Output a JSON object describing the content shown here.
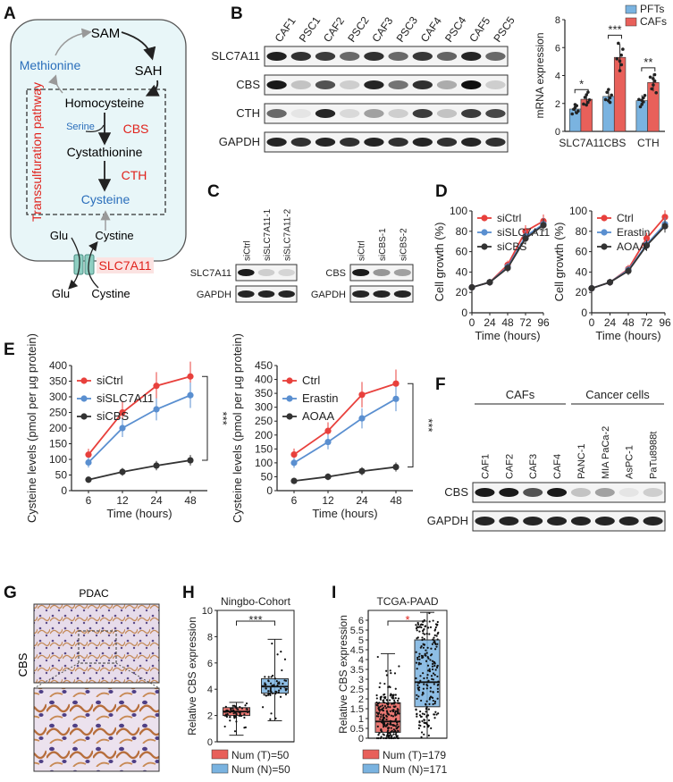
{
  "panel_letters": [
    "A",
    "B",
    "C",
    "D",
    "E",
    "F",
    "G",
    "H",
    "I"
  ],
  "panel_a": {
    "sam": "SAM",
    "sah": "SAH",
    "methionine": "Methionine",
    "homocysteine": "Homocysteine",
    "serine": "Serine",
    "cbs": "CBS",
    "cystathionine": "Cystathionine",
    "cth": "CTH",
    "cysteine": "Cysteine",
    "pathway": "Transsulfuration pathway",
    "glu_in": "Glu",
    "cystine_in": "Cystine",
    "glu_out": "Glu",
    "cystine_out": "Cystine",
    "transporter": "SLC7A11",
    "colors": {
      "blue": "#2a6ebb",
      "red": "#e0221c",
      "cell_fill": "#e8f6f8",
      "transporter": "#8fcfc2"
    }
  },
  "panel_b_blot": {
    "lanes": [
      "CAF1",
      "PSC1",
      "CAF2",
      "PSC2",
      "CAF3",
      "PSC3",
      "CAF4",
      "PSC4",
      "CAF5",
      "PSC5"
    ],
    "rows": [
      "SLC7A11",
      "CBS",
      "CTH",
      "GAPDH"
    ]
  },
  "panel_c": {
    "left_lanes": [
      "siCtrl",
      "siSLC7A11-1",
      "siSLC7A11-2"
    ],
    "left_rows": [
      "SLC7A11",
      "GAPDH"
    ],
    "right_lanes": [
      "siCtrl",
      "siCBS-1",
      "siCBS-2"
    ],
    "right_rows": [
      "CBS",
      "GAPDH"
    ]
  },
  "panel_f": {
    "group1": "CAFs",
    "group2": "Cancer cells",
    "lanes": [
      "CAF1",
      "CAF2",
      "CAF3",
      "CAF4",
      "PANC-1",
      "MIA PaCa-2",
      "AsPC-1",
      "PaTu8988t"
    ],
    "rows": [
      "CBS",
      "GAPDH"
    ]
  },
  "panel_g": {
    "title": "PDAC",
    "side_label": "CBS"
  },
  "chart_data": [
    {
      "id": "B_bar",
      "type": "bar",
      "title": "",
      "ylabel": "mRNA expression",
      "ylim": [
        0,
        8
      ],
      "yticks": [
        0,
        2,
        4,
        6,
        8
      ],
      "categories": [
        "SLC7A11",
        "CBS",
        "CTH"
      ],
      "series": [
        {
          "name": "PFTs",
          "color": "#7ab3e0",
          "values": [
            1.6,
            2.5,
            2.2
          ]
        },
        {
          "name": "CAFs",
          "color": "#e8605a",
          "values": [
            2.3,
            5.3,
            3.5
          ]
        }
      ],
      "significance": [
        "*",
        "***",
        "**"
      ]
    },
    {
      "id": "D_left",
      "type": "line",
      "xlabel": "Time (hours)",
      "ylabel": "Cell growth (%)",
      "x": [
        0,
        24,
        48,
        72,
        96
      ],
      "xticks": [
        0,
        24,
        48,
        72,
        96
      ],
      "ylim": [
        0,
        100
      ],
      "yticks": [
        0,
        20,
        40,
        60,
        80,
        100
      ],
      "series": [
        {
          "name": "siCtrl",
          "color": "#e8403c",
          "values": [
            25,
            30,
            47,
            80,
            90
          ]
        },
        {
          "name": "siSLC7A11",
          "color": "#5a8fd0",
          "values": [
            25,
            30,
            45,
            75,
            87
          ]
        },
        {
          "name": "siCBS",
          "color": "#333333",
          "values": [
            25,
            30,
            44,
            73,
            86
          ]
        }
      ]
    },
    {
      "id": "D_right",
      "type": "line",
      "xlabel": "Time (hours)",
      "ylabel": "Cell growth (%)",
      "x": [
        0,
        24,
        48,
        72,
        96
      ],
      "xticks": [
        0,
        24,
        48,
        72,
        96
      ],
      "ylim": [
        0,
        100
      ],
      "yticks": [
        0,
        20,
        40,
        60,
        80,
        100
      ],
      "series": [
        {
          "name": "Ctrl",
          "color": "#e8403c",
          "values": [
            24,
            30,
            43,
            73,
            94
          ]
        },
        {
          "name": "Erastin",
          "color": "#5a8fd0",
          "values": [
            24,
            30,
            42,
            67,
            87
          ]
        },
        {
          "name": "AOAA",
          "color": "#333333",
          "values": [
            24,
            30,
            41,
            66,
            85
          ]
        }
      ]
    },
    {
      "id": "E_left",
      "type": "line",
      "xlabel": "Time (hours)",
      "ylabel": "Cysteine levels (pmol per µg protein)",
      "x": [
        6,
        12,
        24,
        48
      ],
      "ylim": [
        0,
        400
      ],
      "yticks": [
        0,
        50,
        100,
        150,
        200,
        250,
        300,
        350,
        400
      ],
      "series": [
        {
          "name": "siCtrl",
          "color": "#e8403c",
          "values": [
            115,
            250,
            335,
            365
          ]
        },
        {
          "name": "siSLC7A11",
          "color": "#5a8fd0",
          "values": [
            90,
            200,
            260,
            305
          ]
        },
        {
          "name": "siCBS",
          "color": "#333333",
          "values": [
            35,
            60,
            80,
            97
          ]
        }
      ],
      "significance": "***"
    },
    {
      "id": "E_right",
      "type": "line",
      "xlabel": "Time (hours)",
      "ylabel": "Cysteine levels (pmol per µg protein)",
      "x": [
        6,
        12,
        24,
        48
      ],
      "ylim": [
        0,
        450
      ],
      "yticks": [
        0,
        50,
        100,
        150,
        200,
        250,
        300,
        350,
        400,
        450
      ],
      "series": [
        {
          "name": "Ctrl",
          "color": "#e8403c",
          "values": [
            130,
            215,
            345,
            385
          ]
        },
        {
          "name": "Erastin",
          "color": "#5a8fd0",
          "values": [
            100,
            175,
            260,
            330
          ]
        },
        {
          "name": "AOAA",
          "color": "#333333",
          "values": [
            35,
            50,
            70,
            85
          ]
        }
      ],
      "significance": "***"
    },
    {
      "id": "H_box",
      "type": "box",
      "title": "Ningbo-Cohort",
      "ylabel": "Relative CBS expression",
      "ylim": [
        0,
        10
      ],
      "yticks": [
        0,
        2,
        4,
        6,
        8,
        10
      ],
      "groups": [
        {
          "name": "T",
          "color": "#e8605a",
          "q1": 2.0,
          "median": 2.3,
          "q3": 2.6,
          "min": 0.5,
          "max": 3.0
        },
        {
          "name": "N",
          "color": "#7ab3e0",
          "q1": 3.7,
          "median": 4.2,
          "q3": 4.8,
          "min": 1.6,
          "max": 7.8
        }
      ],
      "significance": "***",
      "legend": [
        "Num (T)=50",
        "Num (N)=50"
      ]
    },
    {
      "id": "I_box",
      "type": "box",
      "title": "TCGA-PAAD",
      "ylabel": "Relative CBS expression",
      "ylim": [
        0,
        6.5
      ],
      "yticks": [
        0,
        0.5,
        1,
        1.5,
        2,
        2.5,
        3,
        3.5,
        4,
        4.5,
        5,
        5.5,
        6
      ],
      "groups": [
        {
          "name": "T",
          "color": "#e8605a",
          "q1": 0.3,
          "median": 0.85,
          "q3": 1.8,
          "min": 0,
          "max": 4.3
        },
        {
          "name": "N",
          "color": "#7ab3e0",
          "q1": 1.6,
          "median": 2.85,
          "q3": 5.0,
          "min": 0,
          "max": 6.4
        }
      ],
      "significance": "*",
      "legend": [
        "Num (T)=179",
        "Num (N)=171"
      ]
    }
  ]
}
